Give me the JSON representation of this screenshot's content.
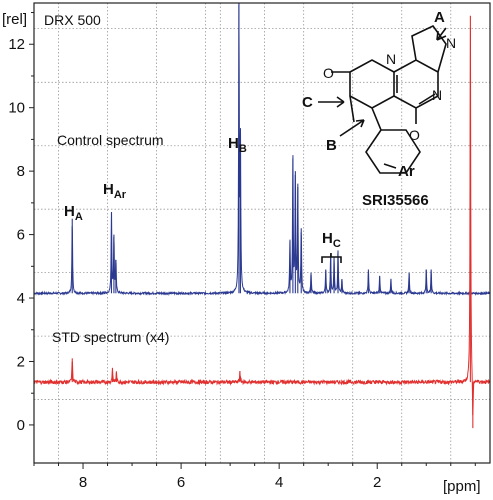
{
  "chart_data": {
    "type": "line",
    "title": "",
    "xlabel": "[ppm]",
    "ylabel": "[rel]",
    "xlim": [
      9.0,
      -0.3
    ],
    "ylim": [
      -1.2,
      13.3
    ],
    "x_reversed": true,
    "grid": true,
    "x_ticks": [
      8,
      6,
      4,
      2
    ],
    "y_ticks": [
      0,
      2,
      4,
      6,
      8,
      10,
      12
    ],
    "x_gridlines": [
      8.5,
      7.5,
      6.5,
      5.5,
      5.2,
      4.3,
      3.5,
      2.5,
      1.5,
      0.5
    ],
    "y_gridlines": [
      0.8,
      2.8,
      4.8,
      6.8,
      8.8,
      10.8,
      12.5
    ],
    "series": [
      {
        "name": "Control spectrum",
        "color": "#2b3990",
        "baseline": 4.15,
        "peaks": [
          {
            "x": 8.22,
            "y": 6.5
          },
          {
            "x": 7.42,
            "y": 6.7
          },
          {
            "x": 7.37,
            "y": 6.0
          },
          {
            "x": 7.33,
            "y": 5.2
          },
          {
            "x": 4.82,
            "y": 13.3
          },
          {
            "x": 4.79,
            "y": 9.0
          },
          {
            "x": 3.78,
            "y": 5.8
          },
          {
            "x": 3.72,
            "y": 8.4
          },
          {
            "x": 3.67,
            "y": 8.0
          },
          {
            "x": 3.62,
            "y": 7.5
          },
          {
            "x": 3.55,
            "y": 6.2
          },
          {
            "x": 3.35,
            "y": 4.8
          },
          {
            "x": 3.05,
            "y": 4.9
          },
          {
            "x": 2.95,
            "y": 5.4
          },
          {
            "x": 2.88,
            "y": 5.3
          },
          {
            "x": 2.8,
            "y": 5.5
          },
          {
            "x": 2.72,
            "y": 4.6
          },
          {
            "x": 2.18,
            "y": 4.9
          },
          {
            "x": 1.95,
            "y": 4.7
          },
          {
            "x": 1.72,
            "y": 4.6
          },
          {
            "x": 1.35,
            "y": 4.8
          },
          {
            "x": 1.0,
            "y": 4.9
          },
          {
            "x": 0.9,
            "y": 4.9
          }
        ]
      },
      {
        "name": "STD spectrum (x4)",
        "color": "#e0302f",
        "baseline": 1.35,
        "peaks": [
          {
            "x": 8.22,
            "y": 2.1
          },
          {
            "x": 7.4,
            "y": 1.8
          },
          {
            "x": 7.32,
            "y": 1.65
          },
          {
            "x": 4.8,
            "y": 1.7
          },
          {
            "x": 0.1,
            "y": 12.9
          },
          {
            "x": 0.05,
            "y": -0.1
          }
        ]
      }
    ],
    "annotations": {
      "instrument": "DRX 500",
      "control_label": "Control spectrum",
      "std_label": "STD spectrum (x4)",
      "h_a": {
        "main": "H",
        "sub": "A"
      },
      "h_ar": {
        "main": "H",
        "sub": "Ar"
      },
      "h_b": {
        "main": "H",
        "sub": "B"
      },
      "h_c": {
        "main": "H",
        "sub": "C"
      },
      "compound_name": "SRI35566",
      "site_a": "A",
      "site_b": "B",
      "site_c": "C",
      "substituent_ar": "Ar"
    }
  }
}
